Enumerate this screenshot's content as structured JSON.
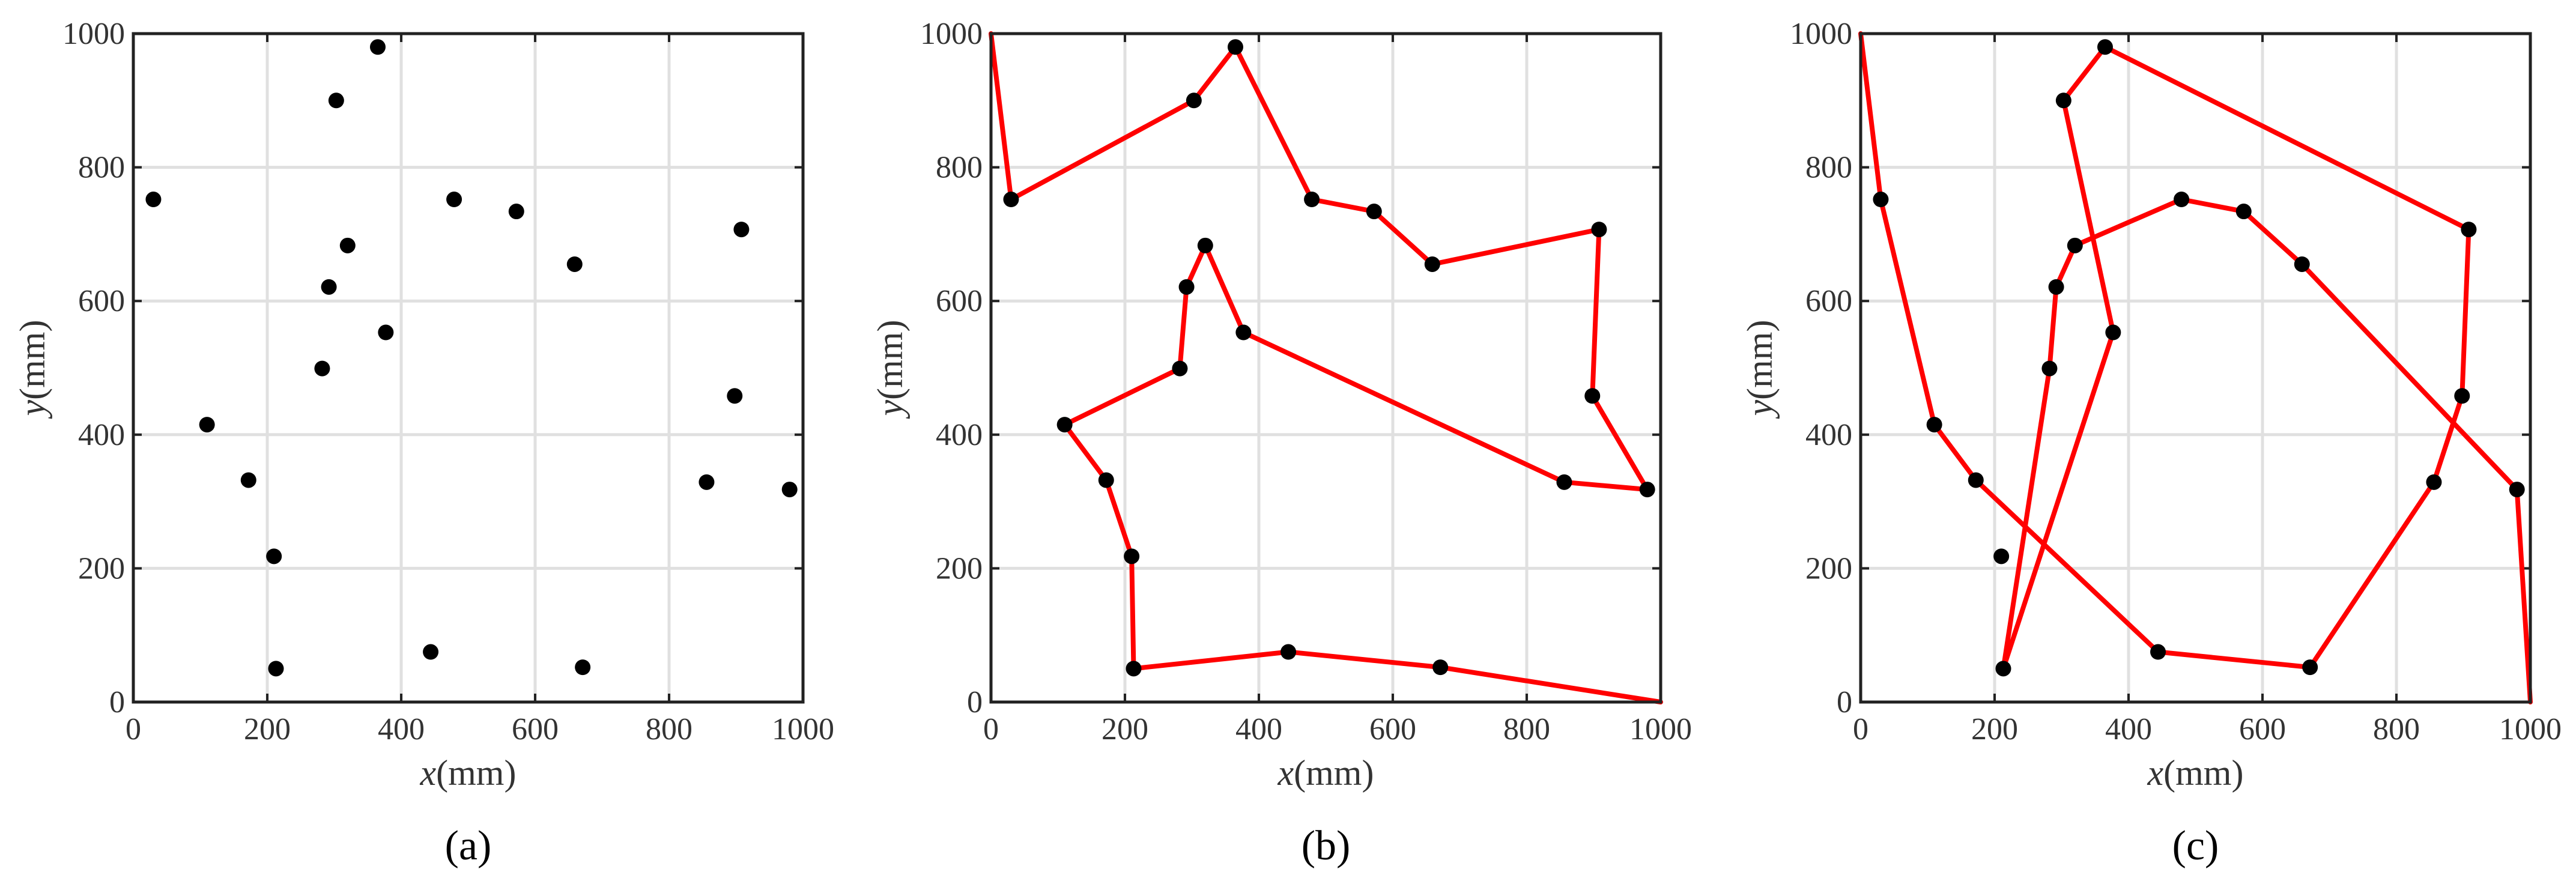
{
  "chart_data": [
    {
      "type": "scatter",
      "panel_label": "(a)",
      "xlabel_var": "x",
      "xlabel_unit": "(mm)",
      "ylabel_var": "y",
      "ylabel_unit": "(mm)",
      "xlim": [
        0,
        1000
      ],
      "ylim": [
        0,
        1000
      ],
      "xticks": [
        "0",
        "200",
        "400",
        "600",
        "800",
        "1000"
      ],
      "yticks": [
        "0",
        "200",
        "400",
        "600",
        "800",
        "1000"
      ],
      "grid": true,
      "marker_color": "#000000",
      "points": [
        [
          30,
          752
        ],
        [
          110,
          415
        ],
        [
          172,
          332
        ],
        [
          210,
          218
        ],
        [
          213,
          50
        ],
        [
          282,
          499
        ],
        [
          292,
          621
        ],
        [
          303,
          900
        ],
        [
          320,
          683
        ],
        [
          365,
          980
        ],
        [
          377,
          553
        ],
        [
          444,
          75
        ],
        [
          479,
          752
        ],
        [
          572,
          734
        ],
        [
          659,
          655
        ],
        [
          671,
          52
        ],
        [
          856,
          329
        ],
        [
          898,
          458
        ],
        [
          908,
          707
        ],
        [
          980,
          318
        ]
      ]
    },
    {
      "type": "line",
      "panel_label": "(b)",
      "xlabel_var": "x",
      "xlabel_unit": "(mm)",
      "ylabel_var": "y",
      "ylabel_unit": "(mm)",
      "xlim": [
        0,
        1000
      ],
      "ylim": [
        0,
        1000
      ],
      "xticks": [
        "0",
        "200",
        "400",
        "600",
        "800",
        "1000"
      ],
      "yticks": [
        "0",
        "200",
        "400",
        "600",
        "800",
        "1000"
      ],
      "grid": true,
      "line_color": "#ff0000",
      "marker_color": "#000000",
      "path": [
        [
          0,
          1000
        ],
        [
          30,
          752
        ],
        [
          303,
          900
        ],
        [
          365,
          980
        ],
        [
          479,
          752
        ],
        [
          572,
          734
        ],
        [
          659,
          655
        ],
        [
          908,
          707
        ],
        [
          898,
          458
        ],
        [
          980,
          318
        ],
        [
          856,
          329
        ],
        [
          377,
          553
        ],
        [
          320,
          683
        ],
        [
          292,
          621
        ],
        [
          282,
          499
        ],
        [
          110,
          415
        ],
        [
          172,
          332
        ],
        [
          210,
          218
        ],
        [
          213,
          50
        ],
        [
          444,
          75
        ],
        [
          671,
          52
        ],
        [
          1000,
          0
        ]
      ],
      "points": [
        [
          30,
          752
        ],
        [
          110,
          415
        ],
        [
          172,
          332
        ],
        [
          210,
          218
        ],
        [
          213,
          50
        ],
        [
          282,
          499
        ],
        [
          292,
          621
        ],
        [
          303,
          900
        ],
        [
          320,
          683
        ],
        [
          365,
          980
        ],
        [
          377,
          553
        ],
        [
          444,
          75
        ],
        [
          479,
          752
        ],
        [
          572,
          734
        ],
        [
          659,
          655
        ],
        [
          671,
          52
        ],
        [
          856,
          329
        ],
        [
          898,
          458
        ],
        [
          908,
          707
        ],
        [
          980,
          318
        ]
      ]
    },
    {
      "type": "line",
      "panel_label": "(c)",
      "xlabel_var": "x",
      "xlabel_unit": "(mm)",
      "ylabel_var": "y",
      "ylabel_unit": "(mm)",
      "xlim": [
        0,
        1000
      ],
      "ylim": [
        0,
        1000
      ],
      "xticks": [
        "0",
        "200",
        "400",
        "600",
        "800",
        "1000"
      ],
      "yticks": [
        "0",
        "200",
        "400",
        "600",
        "800",
        "1000"
      ],
      "grid": true,
      "line_color": "#ff0000",
      "marker_color": "#000000",
      "path": [
        [
          0,
          1000
        ],
        [
          30,
          752
        ],
        [
          110,
          415
        ],
        [
          172,
          332
        ],
        [
          444,
          75
        ],
        [
          671,
          52
        ],
        [
          856,
          329
        ],
        [
          898,
          458
        ],
        [
          908,
          707
        ],
        [
          365,
          980
        ],
        [
          303,
          900
        ],
        [
          377,
          553
        ],
        [
          213,
          50
        ],
        [
          282,
          499
        ],
        [
          292,
          621
        ],
        [
          320,
          683
        ],
        [
          479,
          752
        ],
        [
          572,
          734
        ],
        [
          659,
          655
        ],
        [
          980,
          318
        ],
        [
          1000,
          0
        ]
      ],
      "points": [
        [
          30,
          752
        ],
        [
          110,
          415
        ],
        [
          172,
          332
        ],
        [
          210,
          218
        ],
        [
          213,
          50
        ],
        [
          282,
          499
        ],
        [
          292,
          621
        ],
        [
          303,
          900
        ],
        [
          320,
          683
        ],
        [
          365,
          980
        ],
        [
          377,
          553
        ],
        [
          444,
          75
        ],
        [
          479,
          752
        ],
        [
          572,
          734
        ],
        [
          659,
          655
        ],
        [
          671,
          52
        ],
        [
          856,
          329
        ],
        [
          898,
          458
        ],
        [
          908,
          707
        ],
        [
          980,
          318
        ]
      ]
    }
  ]
}
